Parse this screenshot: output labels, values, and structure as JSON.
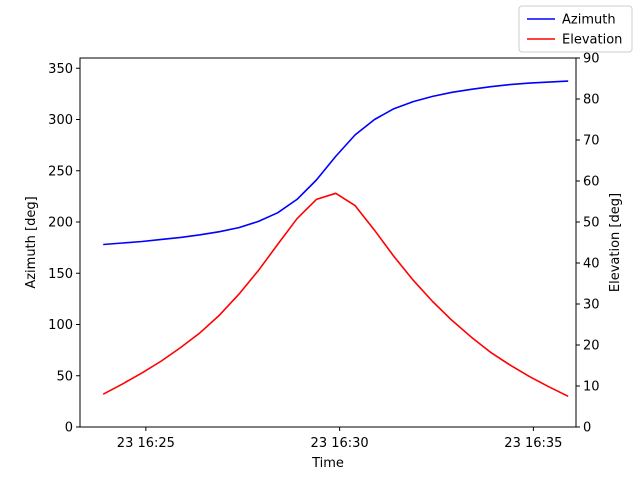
{
  "chart_data": {
    "type": "line",
    "xlabel": "Time",
    "ylabel_left": "Azimuth [deg]",
    "ylabel_right": "Elevation [deg]",
    "x_ticks": [
      {
        "minutes": 25,
        "label": "23 16:25"
      },
      {
        "minutes": 30,
        "label": "23 16:30"
      },
      {
        "minutes": 35,
        "label": "23 16:35"
      }
    ],
    "xlim_minutes_after_16_00": [
      23.3,
      36.1
    ],
    "ylim_left": [
      0,
      360
    ],
    "yticks_left": [
      0,
      50,
      100,
      150,
      200,
      250,
      300,
      350
    ],
    "ylim_right": [
      0,
      90
    ],
    "yticks_right": [
      0,
      10,
      20,
      30,
      40,
      50,
      60,
      70,
      80,
      90
    ],
    "grid": false,
    "legend_position": "top-right",
    "x_minutes_after_16_00": [
      23.9,
      24.4,
      24.9,
      25.4,
      25.9,
      26.4,
      26.9,
      27.4,
      27.9,
      28.4,
      28.9,
      29.4,
      29.9,
      30.4,
      30.9,
      31.4,
      31.9,
      32.4,
      32.9,
      33.4,
      33.9,
      34.4,
      34.9,
      35.4,
      35.9
    ],
    "series": [
      {
        "name": "Azimuth",
        "axis": "left",
        "color": "#0000ff",
        "values": [
          178,
          179.5,
          181,
          183,
          185,
          187.5,
          190.5,
          194.5,
          200.5,
          209,
          222,
          241,
          264,
          285,
          300,
          310.5,
          317.5,
          322.5,
          326.5,
          329.5,
          332,
          334,
          335.5,
          336.5,
          337.5
        ]
      },
      {
        "name": "Elevation",
        "axis": "right",
        "color": "#ff0000",
        "values": [
          8,
          10.5,
          13.2,
          16.1,
          19.4,
          23,
          27.3,
          32.4,
          38.1,
          44.5,
          50.8,
          55.5,
          57,
          54,
          48,
          41.6,
          35.8,
          30.6,
          26,
          21.9,
          18.2,
          15.1,
          12.3,
          9.8,
          7.5
        ]
      }
    ]
  }
}
